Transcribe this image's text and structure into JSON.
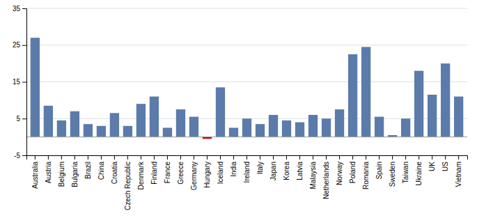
{
  "chart_data": {
    "type": "bar",
    "categories": [
      "Australia",
      "Austria",
      "Belgium",
      "Bulgaria",
      "Brazil",
      "China",
      "Croatia",
      "Czech Republic",
      "Denmark",
      "Finland",
      "France",
      "Greece",
      "Germany",
      "Hungary",
      "Iceland",
      "India",
      "Ireland",
      "Italy",
      "Japan",
      "Korea",
      "Latvia",
      "Malaysia",
      "Netherlands",
      "Norway",
      "Poland",
      "Romania",
      "Spain",
      "Sweden",
      "Taiwan",
      "Ukraine",
      "UK",
      "US",
      "Vietnam"
    ],
    "values": [
      27.0,
      8.5,
      4.5,
      7.0,
      3.5,
      3.0,
      6.5,
      3.0,
      9.0,
      11.0,
      2.5,
      7.5,
      5.5,
      -0.5,
      13.5,
      2.5,
      5.0,
      3.5,
      6.0,
      4.5,
      4.0,
      6.0,
      5.0,
      7.5,
      22.5,
      24.5,
      5.5,
      0.5,
      5.0,
      18.0,
      11.5,
      20.0,
      11.0
    ],
    "colors": [
      "#5B7BAA",
      "#5B7BAA",
      "#5B7BAA",
      "#5B7BAA",
      "#5B7BAA",
      "#5B7BAA",
      "#5B7BAA",
      "#5B7BAA",
      "#5B7BAA",
      "#5B7BAA",
      "#5B7BAA",
      "#5B7BAA",
      "#5B7BAA",
      "#CC0000",
      "#5B7BAA",
      "#5B7BAA",
      "#5B7BAA",
      "#5B7BAA",
      "#5B7BAA",
      "#5B7BAA",
      "#5B7BAA",
      "#5B7BAA",
      "#5B7BAA",
      "#5B7BAA",
      "#5B7BAA",
      "#5B7BAA",
      "#5B7BAA",
      "#5B7BAA",
      "#5B7BAA",
      "#5B7BAA",
      "#5B7BAA",
      "#5B7BAA",
      "#5B7BAA"
    ],
    "ylim": [
      -5,
      35
    ],
    "yticks": [
      -5,
      5,
      15,
      25,
      35
    ],
    "grid": true
  }
}
